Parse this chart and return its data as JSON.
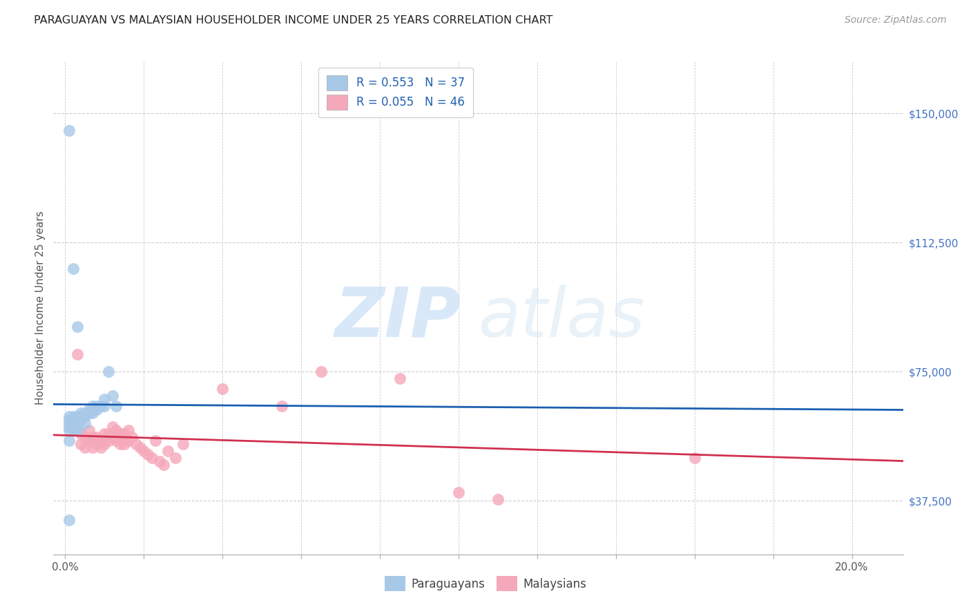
{
  "title": "PARAGUAYAN VS MALAYSIAN HOUSEHOLDER INCOME UNDER 25 YEARS CORRELATION CHART",
  "source": "Source: ZipAtlas.com",
  "ylabel": "Householder Income Under 25 years",
  "yticks": [
    37500,
    75000,
    112500,
    150000
  ],
  "ytick_labels": [
    "$37,500",
    "$75,000",
    "$112,500",
    "$150,000"
  ],
  "xticks": [
    0.0,
    0.02,
    0.04,
    0.06,
    0.08,
    0.1,
    0.12,
    0.14,
    0.16,
    0.18,
    0.2
  ],
  "xlim": [
    -0.003,
    0.213
  ],
  "ylim": [
    22000,
    165000
  ],
  "watermark_zip": "ZIP",
  "watermark_atlas": "atlas",
  "legend_label1": "R = 0.553   N = 37",
  "legend_label2": "R = 0.055   N = 46",
  "blue_color": "#a8c8e8",
  "pink_color": "#f5a8ba",
  "blue_line_color": "#1a5fb0",
  "pink_line_color": "#d03050",
  "paraguayan_x": [
    0.001,
    0.001,
    0.001,
    0.001,
    0.001,
    0.001,
    0.002,
    0.002,
    0.002,
    0.002,
    0.003,
    0.003,
    0.003,
    0.003,
    0.003,
    0.004,
    0.004,
    0.004,
    0.005,
    0.005,
    0.005,
    0.006,
    0.006,
    0.007,
    0.007,
    0.008,
    0.008,
    0.009,
    0.01,
    0.01,
    0.011,
    0.012,
    0.013,
    0.001,
    0.002,
    0.003,
    0.001
  ],
  "paraguayan_y": [
    62000,
    61000,
    60000,
    59000,
    55000,
    58000,
    62000,
    60000,
    59000,
    58000,
    62000,
    61000,
    60000,
    59000,
    58000,
    63000,
    62000,
    61000,
    63000,
    62000,
    60000,
    64000,
    63000,
    65000,
    63000,
    65000,
    64000,
    65000,
    67000,
    65000,
    75000,
    68000,
    65000,
    145000,
    105000,
    88000,
    32000
  ],
  "malaysian_x": [
    0.003,
    0.004,
    0.004,
    0.005,
    0.005,
    0.006,
    0.006,
    0.007,
    0.007,
    0.008,
    0.008,
    0.009,
    0.009,
    0.01,
    0.01,
    0.011,
    0.011,
    0.012,
    0.012,
    0.013,
    0.013,
    0.014,
    0.014,
    0.015,
    0.015,
    0.016,
    0.016,
    0.017,
    0.018,
    0.019,
    0.02,
    0.021,
    0.022,
    0.023,
    0.024,
    0.025,
    0.026,
    0.028,
    0.03,
    0.04,
    0.055,
    0.065,
    0.085,
    0.1,
    0.11,
    0.16
  ],
  "malaysian_y": [
    80000,
    57000,
    54000,
    56000,
    53000,
    58000,
    55000,
    56000,
    53000,
    56000,
    54000,
    55000,
    53000,
    57000,
    54000,
    57000,
    55000,
    59000,
    56000,
    58000,
    55000,
    57000,
    54000,
    57000,
    54000,
    58000,
    55000,
    56000,
    54000,
    53000,
    52000,
    51000,
    50000,
    55000,
    49000,
    48000,
    52000,
    50000,
    54000,
    70000,
    65000,
    75000,
    73000,
    40000,
    38000,
    50000
  ]
}
